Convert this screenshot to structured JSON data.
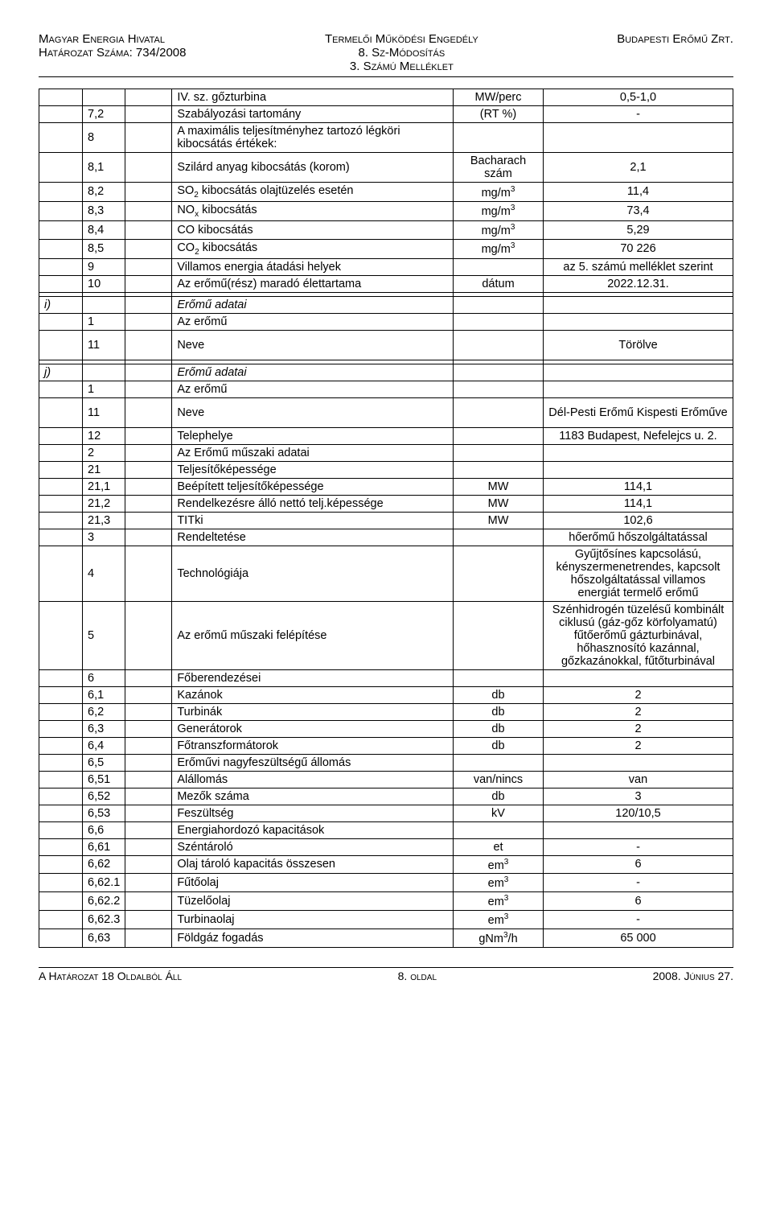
{
  "header": {
    "left1": "Magyar Energia Hivatal",
    "left2": "Határozat Száma: 734/2008",
    "center1": "Termelői Működési Engedély",
    "center2": "8. Sz-Módosítás",
    "center3": "3. Számú Melléklet",
    "right1": "Budapesti Erőmű Zrt."
  },
  "rows": [
    {
      "a": "",
      "b": "",
      "c": "",
      "d": "IV. sz. gőzturbina",
      "e": "MW/perc",
      "f": "0,5-1,0"
    },
    {
      "a": "",
      "b": "7,2",
      "c": "",
      "d": "Szabályozási tartomány",
      "e": "(RT %)",
      "f": "-"
    },
    {
      "a": "",
      "b": "8",
      "c": "",
      "d": "A maximális teljesítményhez tartozó légköri kibocsátás értékek:",
      "e": "",
      "f": ""
    },
    {
      "a": "",
      "b": "8,1",
      "c": "",
      "d": "Szilárd anyag kibocsátás (korom)",
      "e": "Bacharach szám",
      "f": "2,1"
    },
    {
      "a": "",
      "b": "8,2",
      "c": "",
      "d": "SO₂ kibocsátás olajtüzelés esetén",
      "e": "mg/m³",
      "f": "11,4"
    },
    {
      "a": "",
      "b": "8,3",
      "c": "",
      "d": "NOₓ kibocsátás",
      "e": "mg/m³",
      "f": "73,4"
    },
    {
      "a": "",
      "b": "8,4",
      "c": "",
      "d": "CO kibocsátás",
      "e": "mg/m³",
      "f": "5,29"
    },
    {
      "a": "",
      "b": "8,5",
      "c": "",
      "d": "CO₂ kibocsátás",
      "e": "mg/m³",
      "f": "70 226"
    },
    {
      "a": "",
      "b": "9",
      "c": "",
      "d": "Villamos energia átadási helyek",
      "e": "",
      "f": "az 5. számú melléklet szerint"
    },
    {
      "a": "",
      "b": "10",
      "c": "",
      "d": "Az erőmű(rész) maradó élettartama",
      "e": "dátum",
      "f": "2022.12.31."
    },
    {
      "a": "",
      "b": "",
      "c": "",
      "d": "",
      "e": "",
      "f": ""
    },
    {
      "a": "i)",
      "b": "",
      "c": "",
      "d": "Erőmű adatai",
      "e": "",
      "f": "",
      "italic": true
    },
    {
      "a": "",
      "b": "1",
      "c": "",
      "d": "Az erőmű",
      "e": "",
      "f": ""
    },
    {
      "a": "",
      "b": "11",
      "c": "",
      "d": "Neve",
      "e": "",
      "f": "Törölve",
      "tall": true
    },
    {
      "a": "",
      "b": "",
      "c": "",
      "d": "",
      "e": "",
      "f": ""
    },
    {
      "a": "j)",
      "b": "",
      "c": "",
      "d": "Erőmű adatai",
      "e": "",
      "f": "",
      "italic": true
    },
    {
      "a": "",
      "b": "1",
      "c": "",
      "d": "Az erőmű",
      "e": "",
      "f": ""
    },
    {
      "a": "",
      "b": "11",
      "c": "",
      "d": "Neve",
      "e": "",
      "f": "Dél-Pesti Erőmű Kispesti Erőműve",
      "tall": true
    },
    {
      "a": "",
      "b": "12",
      "c": "",
      "d": "Telephelye",
      "e": "",
      "f": "1183 Budapest, Nefelejcs u. 2."
    },
    {
      "a": "",
      "b": "2",
      "c": "",
      "d": "Az Erőmű műszaki adatai",
      "e": "",
      "f": ""
    },
    {
      "a": "",
      "b": "21",
      "c": "",
      "d": "Teljesítőképessége",
      "e": "",
      "f": ""
    },
    {
      "a": "",
      "b": "21,1",
      "c": "",
      "d": "Beépített teljesítőképessége",
      "e": "MW",
      "f": "114,1",
      "indent": 2
    },
    {
      "a": "",
      "b": "21,2",
      "c": "",
      "d": "Rendelkezésre álló nettó telj.képessége",
      "e": "MW",
      "f": "114,1",
      "indent": 2
    },
    {
      "a": "",
      "b": "21,3",
      "c": "",
      "d": "TITki",
      "e": "MW",
      "f": "102,6",
      "indent": 3
    },
    {
      "a": "",
      "b": "3",
      "c": "",
      "d": "Rendeltetése",
      "e": "",
      "f": "hőerőmű hőszolgáltatással"
    },
    {
      "a": "",
      "b": "4",
      "c": "",
      "d": "Technológiája",
      "e": "",
      "f": "Gyűjtősínes kapcsolású, kényszermenetrendes, kapcsolt hőszolgáltatással villamos energiát termelő erőmű"
    },
    {
      "a": "",
      "b": "5",
      "c": "",
      "d": "Az erőmű műszaki felépítése",
      "e": "",
      "f": "Szénhidrogén tüzelésű kombinált ciklusú (gáz-gőz körfolyamatú) fűtőerőmű gázturbinával, hőhasznosító kazánnal, gőzkazánokkal, fűtőturbinával"
    },
    {
      "a": "",
      "b": "6",
      "c": "",
      "d": "Főberendezései",
      "e": "",
      "f": ""
    },
    {
      "a": "",
      "b": "6,1",
      "c": "",
      "d": "Kazánok",
      "e": "db",
      "f": "2",
      "indent": 2
    },
    {
      "a": "",
      "b": "6,2",
      "c": "",
      "d": "Turbinák",
      "e": "db",
      "f": "2",
      "indent": 2
    },
    {
      "a": "",
      "b": "6,3",
      "c": "",
      "d": "Generátorok",
      "e": "db",
      "f": "2",
      "indent": 2
    },
    {
      "a": "",
      "b": "6,4",
      "c": "",
      "d": "Főtranszformátorok",
      "e": "db",
      "f": "2",
      "indent": 2
    },
    {
      "a": "",
      "b": "6,5",
      "c": "",
      "d": "Erőművi nagyfeszültségű állomás",
      "e": "",
      "f": "",
      "indent": 2
    },
    {
      "a": "",
      "b": "6,51",
      "c": "",
      "d": "Alállomás",
      "e": "van/nincs",
      "f": "van",
      "indent": 3
    },
    {
      "a": "",
      "b": "6,52",
      "c": "",
      "d": "Mezők száma",
      "e": "db",
      "f": "3",
      "indent": 3
    },
    {
      "a": "",
      "b": "6,53",
      "c": "",
      "d": "Feszültség",
      "e": "kV",
      "f": "120/10,5",
      "indent": 3
    },
    {
      "a": "",
      "b": "6,6",
      "c": "",
      "d": "Energiahordozó kapacitások",
      "e": "",
      "f": "",
      "indent": 2
    },
    {
      "a": "",
      "b": "6,61",
      "c": "",
      "d": "Széntároló",
      "e": "et",
      "f": "-",
      "indent": 3
    },
    {
      "a": "",
      "b": "6,62",
      "c": "",
      "d": "Olaj tároló kapacitás összesen",
      "e": "em³",
      "f": "6",
      "indent": 3
    },
    {
      "a": "",
      "b": "6,62.1",
      "c": "",
      "d": "Fűtőolaj",
      "e": "em³",
      "f": "-",
      "indent": 3
    },
    {
      "a": "",
      "b": "6,62.2",
      "c": "",
      "d": "Tüzelőolaj",
      "e": "em³",
      "f": "6",
      "indent": 3
    },
    {
      "a": "",
      "b": "6,62.3",
      "c": "",
      "d": "Turbinaolaj",
      "e": "em³",
      "f": "-",
      "indent": 3
    },
    {
      "a": "",
      "b": "6,63",
      "c": "",
      "d": "Földgáz fogadás",
      "e": "gNm³/h",
      "f": "65 000",
      "indent": 3
    }
  ],
  "footer": {
    "left": "A Határozat 18 Oldalból Áll",
    "center": "8. oldal",
    "right": "2008. Június 27."
  }
}
